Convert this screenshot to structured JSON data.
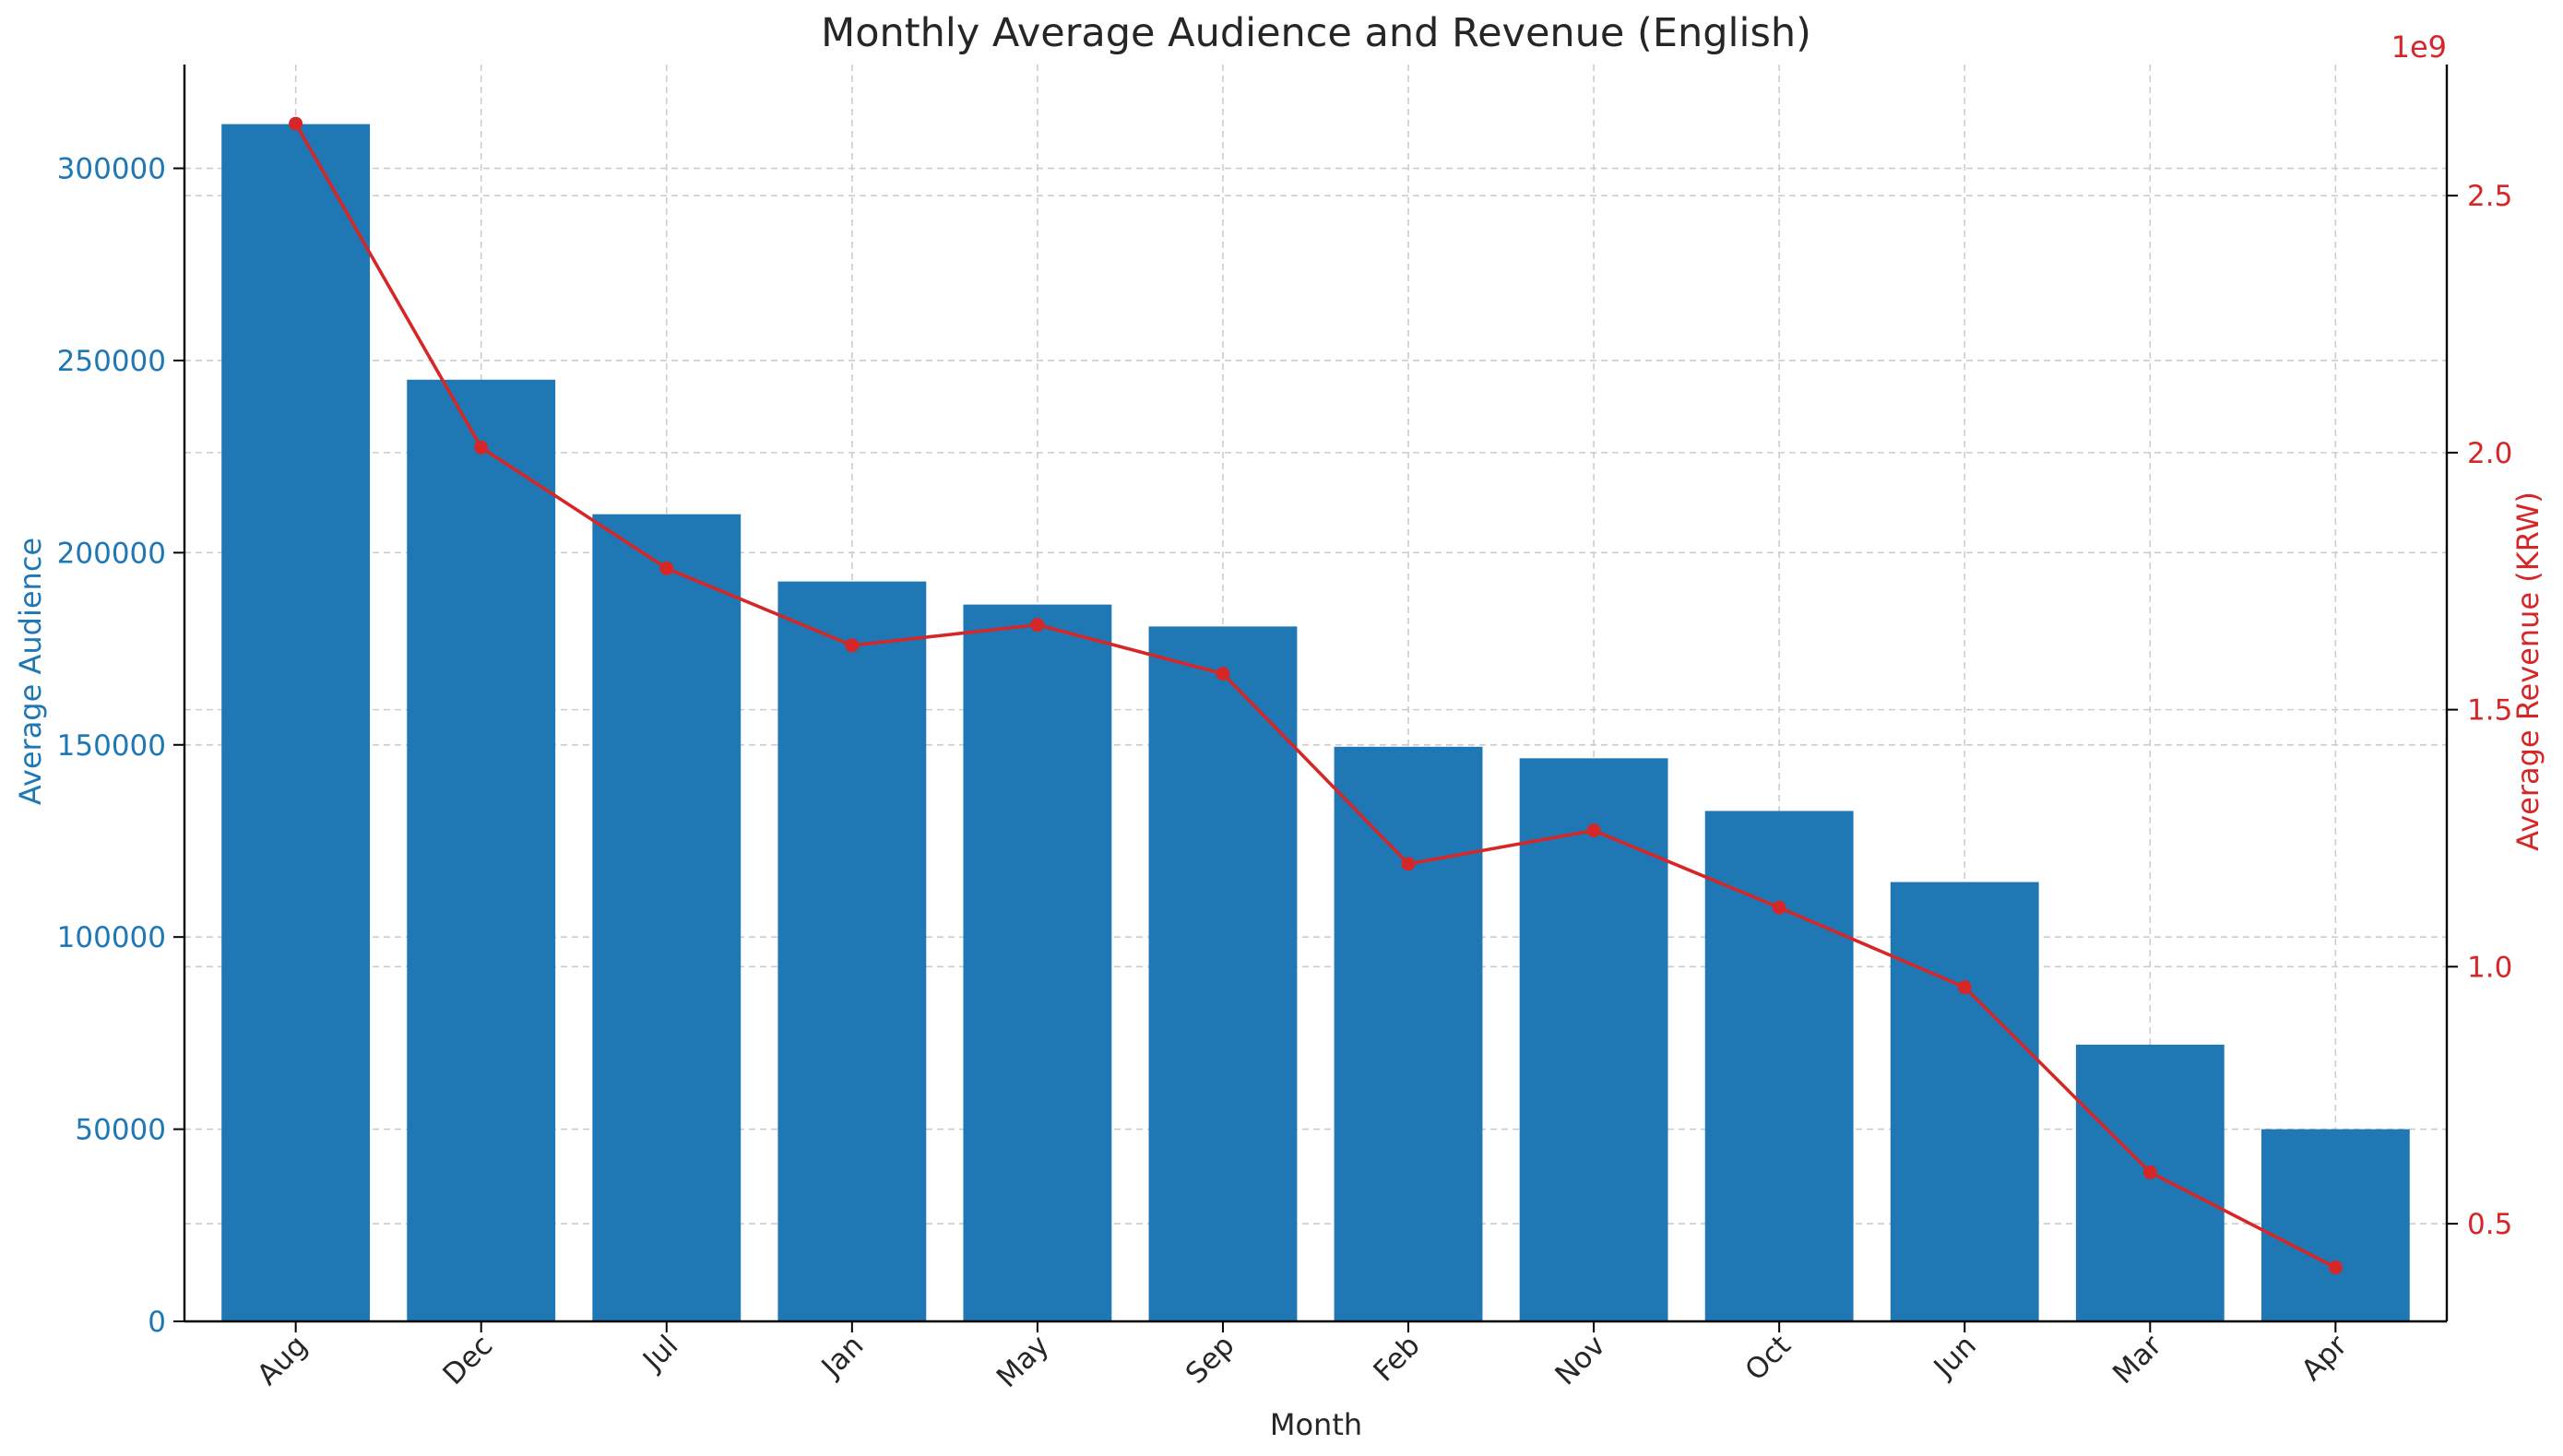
{
  "chart_data": {
    "type": "bar",
    "title": "Monthly Average Audience and Revenue (English)",
    "xlabel": "Month",
    "ylabel": "Average Audience",
    "y2label": "Average Revenue (KRW)",
    "y2_offset_label": "1e9",
    "categories": [
      "Aug",
      "Dec",
      "Jul",
      "Jan",
      "May",
      "Sep",
      "Feb",
      "Nov",
      "Oct",
      "Jun",
      "Mar",
      "Apr"
    ],
    "series": [
      {
        "name": "Average Audience",
        "type": "bar",
        "axis": "left",
        "color": "#1f77b4",
        "values": [
          311500,
          245000,
          210000,
          192500,
          186500,
          180800,
          149500,
          146500,
          132800,
          114300,
          72000,
          50000
        ]
      },
      {
        "name": "Average Revenue (KRW)",
        "type": "line",
        "axis": "right",
        "color": "#d62728",
        "values": [
          2640000000,
          2010000000,
          1775000000,
          1625000000,
          1665000000,
          1570000000,
          1200000000,
          1265000000,
          1115000000,
          960000000,
          600000000,
          415000000
        ]
      }
    ],
    "ylim": [
      0,
      327000
    ],
    "y_ticks": [
      0,
      50000,
      100000,
      150000,
      200000,
      250000,
      300000
    ],
    "y_tick_labels": [
      "0",
      "50000",
      "100000",
      "150000",
      "200000",
      "250000",
      "300000"
    ],
    "y2lim": [
      310000000,
      2755000000
    ],
    "y2_ticks": [
      500000000,
      1000000000,
      1500000000,
      2000000000,
      2500000000
    ],
    "y2_tick_labels": [
      "0.5",
      "1.0",
      "1.5",
      "2.0",
      "2.5"
    ],
    "grid": true,
    "left_axis_color": "#1f77b4",
    "right_axis_color": "#d62728"
  }
}
